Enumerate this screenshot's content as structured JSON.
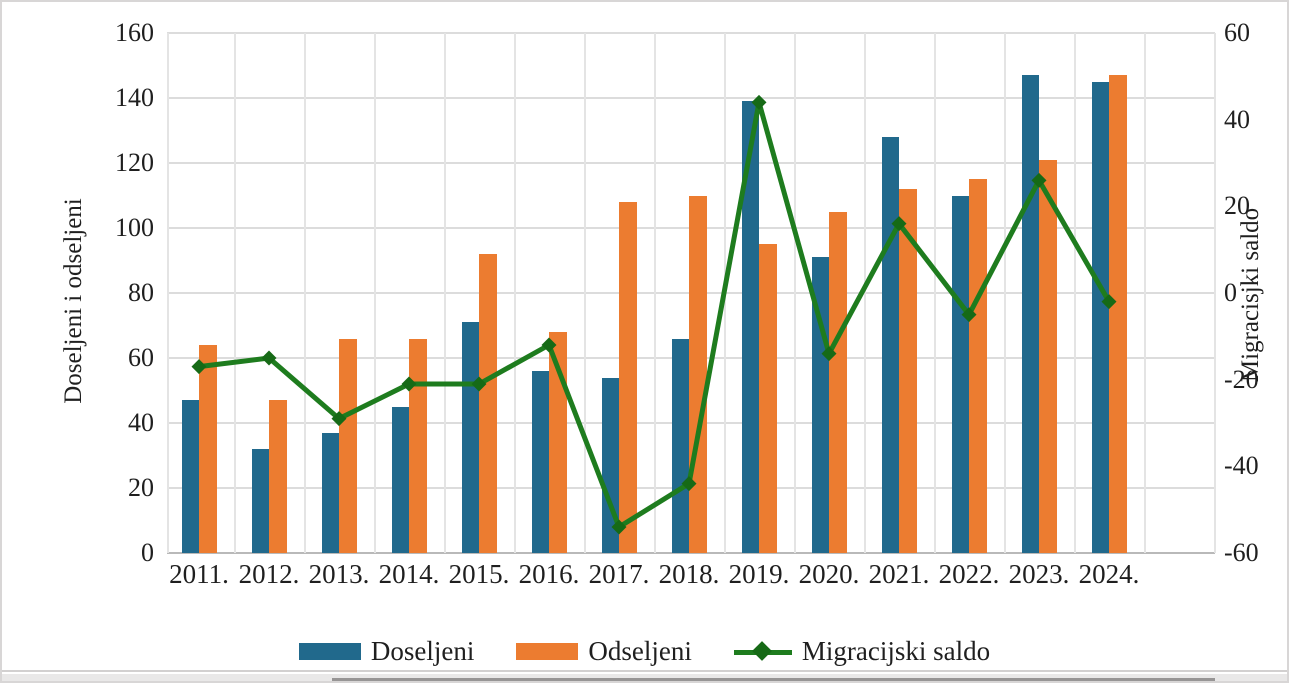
{
  "chart_data": {
    "type": "combo_bar_line",
    "title": "",
    "categories": [
      "2011.",
      "2012.",
      "2013.",
      "2014.",
      "2015.",
      "2016.",
      "2017.",
      "2018.",
      "2019.",
      "2020.",
      "2021.",
      "2022.",
      "2023.",
      "2024."
    ],
    "series": [
      {
        "name": "Doseljeni",
        "type": "bar",
        "axis": "left",
        "color": "#21698C",
        "values": [
          47,
          32,
          37,
          45,
          71,
          56,
          54,
          66,
          139,
          91,
          128,
          110,
          147,
          145
        ]
      },
      {
        "name": "Odseljeni",
        "type": "bar",
        "axis": "left",
        "color": "#EC7C30",
        "values": [
          64,
          47,
          66,
          66,
          92,
          68,
          108,
          110,
          95,
          105,
          112,
          115,
          121,
          147
        ]
      },
      {
        "name": "Migracijski saldo",
        "type": "line",
        "axis": "right",
        "color": "#1E7C1E",
        "marker": "diamond",
        "marker_color": "#166A16",
        "values": [
          -17,
          -15,
          -29,
          -21,
          -21,
          -12,
          -54,
          -44,
          44,
          -14,
          16,
          -5,
          26,
          -2
        ]
      }
    ],
    "left_axis": {
      "label": "Doseljeni i odseljeni",
      "min": 0,
      "max": 160,
      "ticks": [
        160,
        140,
        120,
        100,
        80,
        60,
        40,
        20,
        0
      ]
    },
    "right_axis": {
      "label": "Migracisjki saldo",
      "min": -60,
      "max": 60,
      "ticks": [
        60,
        40,
        20,
        0,
        -20,
        -40,
        -60
      ]
    },
    "grid": {
      "horizontal": true,
      "vertical": true
    },
    "legend_position": "bottom"
  }
}
